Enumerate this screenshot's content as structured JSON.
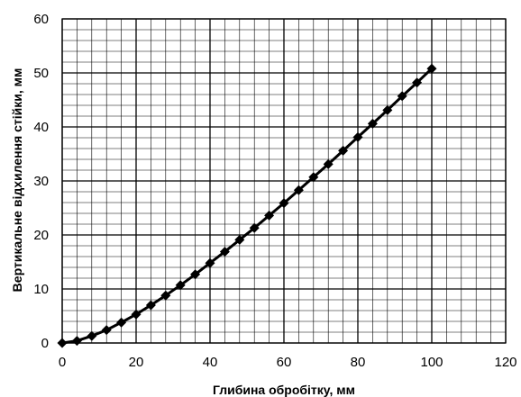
{
  "chart_data": {
    "type": "line",
    "title": "",
    "xlabel": "Глибина обробітку, мм",
    "ylabel": "Вертикальне відхилення стійки, мм",
    "xlim": [
      0,
      120
    ],
    "ylim": [
      0,
      60
    ],
    "x_ticks": [
      0,
      20,
      40,
      60,
      80,
      100,
      120
    ],
    "y_ticks": [
      0,
      10,
      20,
      30,
      40,
      50,
      60
    ],
    "x_tick_labels": [
      "0",
      "20",
      "40",
      "60",
      "80",
      "100",
      "120"
    ],
    "y_tick_labels": [
      "0",
      "10",
      "20",
      "30",
      "40",
      "50",
      "60"
    ],
    "grid": true,
    "grid_minor_step": {
      "x": 4,
      "y": 2
    },
    "marker": "diamond",
    "colors": {
      "line": "#000000",
      "marker": "#000000",
      "grid": "#000000"
    },
    "series": [
      {
        "x": [
          0,
          4,
          8,
          12,
          16,
          20,
          24,
          28,
          32,
          36,
          40,
          44,
          48,
          52,
          56,
          60,
          64,
          68,
          72,
          76,
          80,
          84,
          88,
          92,
          96,
          100
        ],
        "y": [
          0,
          0.4,
          1.3,
          2.4,
          3.8,
          5.3,
          7.0,
          8.8,
          10.7,
          12.7,
          14.8,
          16.9,
          19.1,
          21.3,
          23.6,
          25.9,
          28.3,
          30.7,
          33.1,
          35.6,
          38.1,
          40.6,
          43.1,
          45.7,
          48.2,
          50.8
        ]
      }
    ]
  }
}
